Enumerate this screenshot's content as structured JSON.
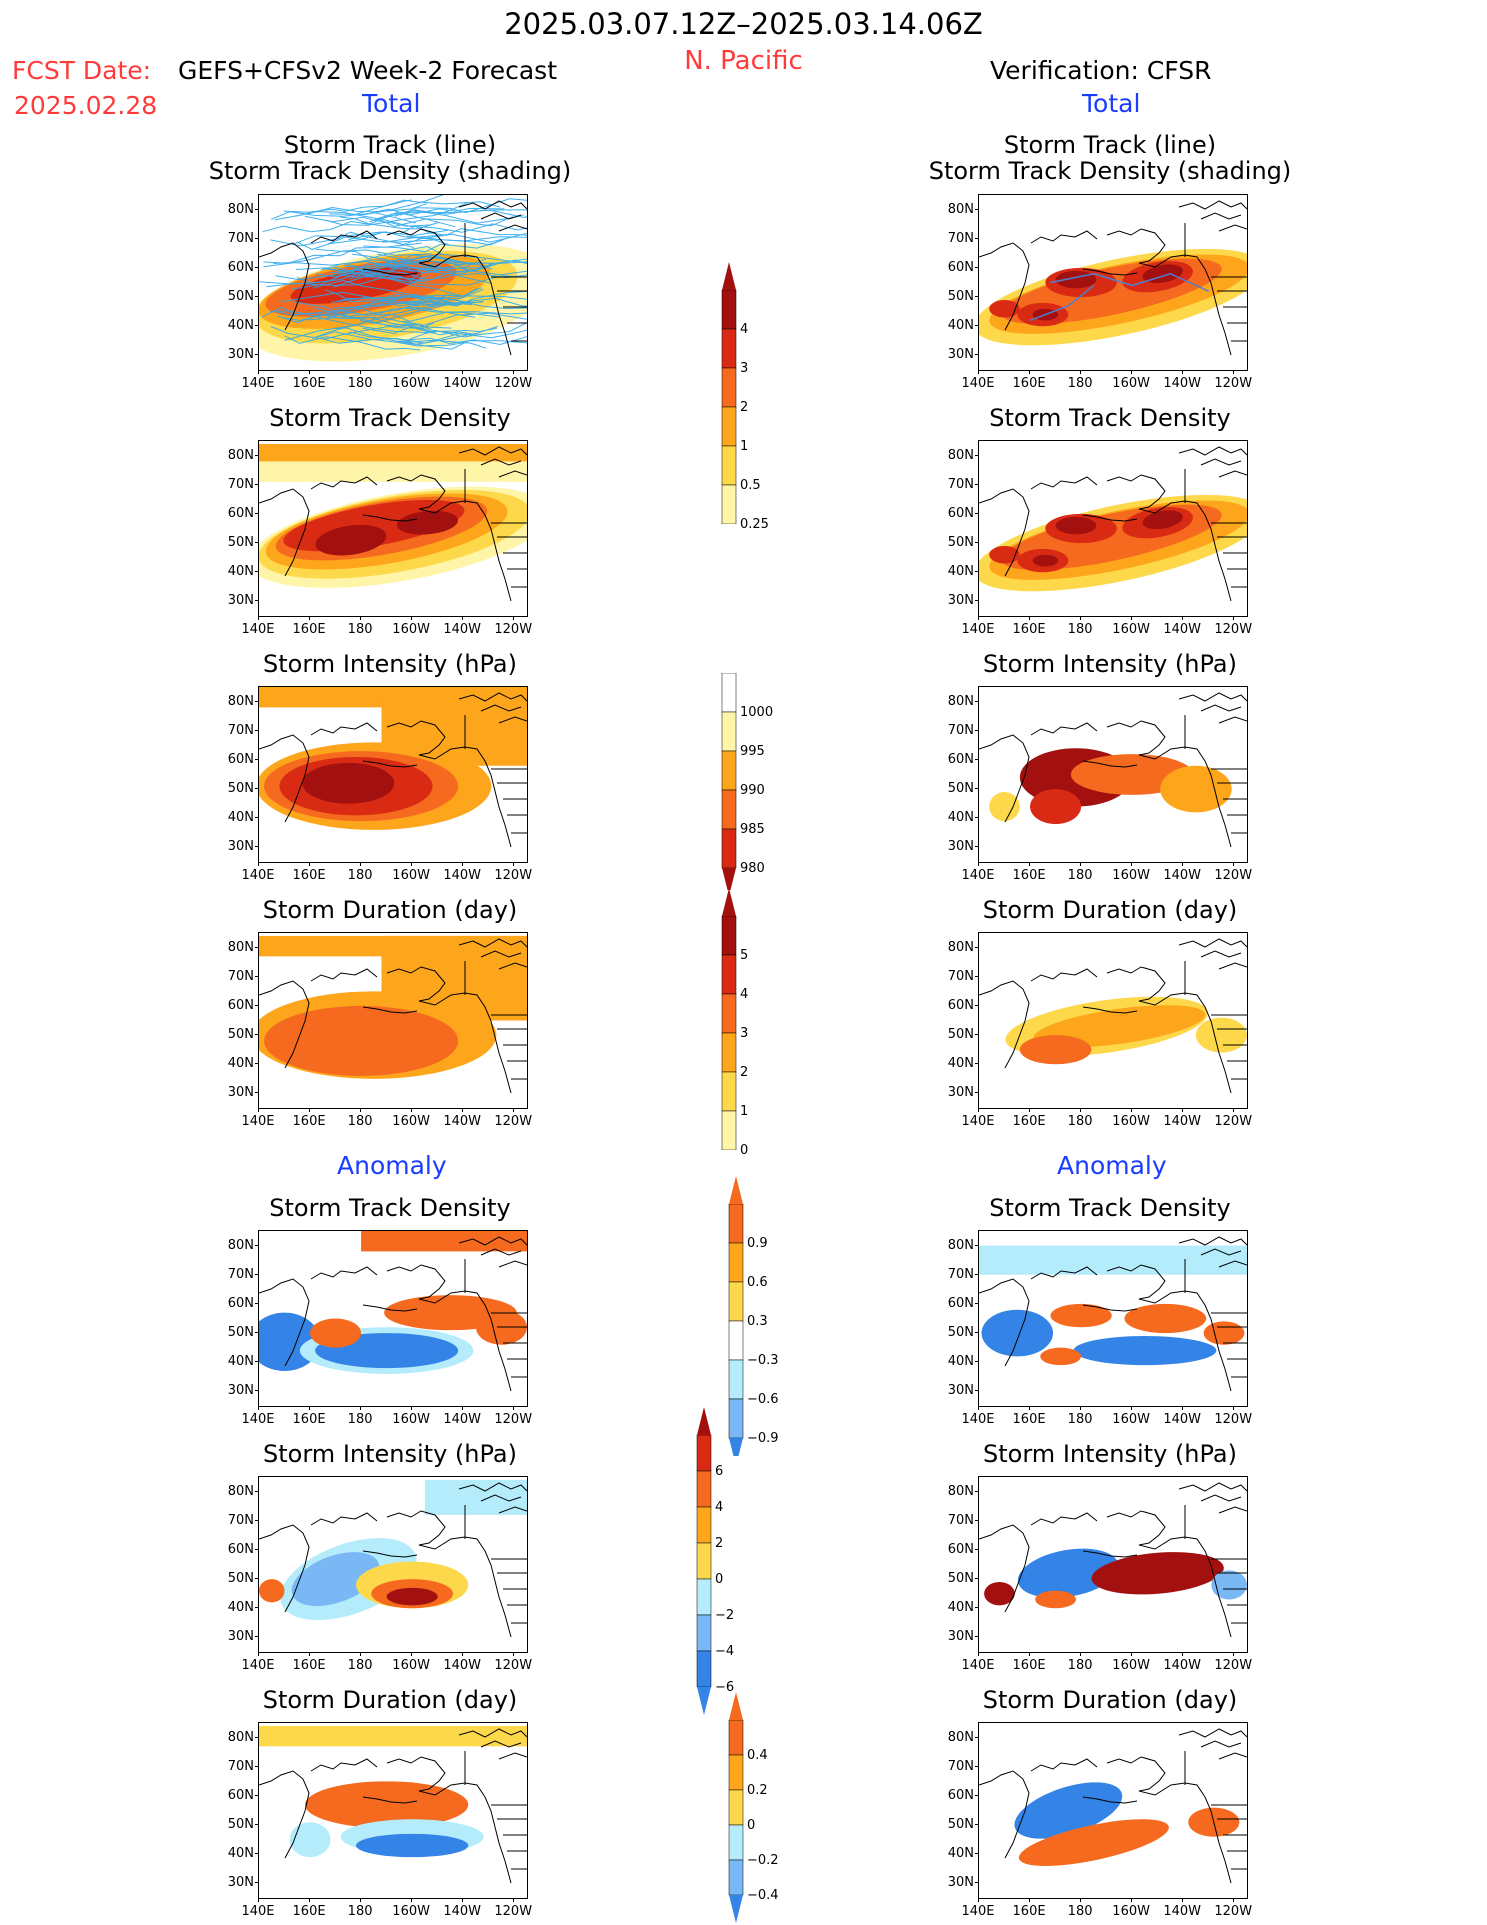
{
  "header": {
    "date_range": "2025.03.07.12Z–2025.03.14.06Z",
    "region": "N. Pacific",
    "fcst_label": "FCST Date:",
    "fcst_model": "GEFS+CFSv2 Week-2 Forecast",
    "fcst_date": "2025.02.28",
    "verification": "Verification: CFSR"
  },
  "sections": {
    "total": "Total",
    "anomaly": "Anomaly"
  },
  "panel_titles": {
    "track_line": "Storm Track (line)",
    "track_density_shading": "Storm Track Density (shading)",
    "track_density": "Storm Track Density",
    "intensity": "Storm Intensity (hPa)",
    "duration": "Storm Duration (day)"
  },
  "axes": {
    "lat_ticks": [
      "80N",
      "70N",
      "60N",
      "50N",
      "40N",
      "30N"
    ],
    "lon_ticks": [
      "140E",
      "160E",
      "180",
      "160W",
      "140W",
      "120W"
    ]
  },
  "colors": {
    "lightyellow": "#fff5a8",
    "yellow": "#fdd84a",
    "orange": "#fda51b",
    "darkorange": "#f56a1e",
    "red": "#d92b14",
    "darkred": "#a31010",
    "lightblue": "#b4ecfc",
    "midblue": "#7ab8f5",
    "blue": "#3483e6",
    "darkblue": "#1550c8",
    "track_line": "#2aa7ee",
    "track_obs": "#4d7fd6"
  },
  "colorbars": [
    {
      "id": "density_total",
      "labels": [
        "4",
        "3",
        "2",
        "1",
        "0.5",
        "0.25"
      ]
    },
    {
      "id": "intensity_total",
      "labels": [
        "1000",
        "995",
        "990",
        "985",
        "980"
      ]
    },
    {
      "id": "duration_total",
      "labels": [
        "5",
        "4",
        "3",
        "2",
        "1",
        "0"
      ]
    },
    {
      "id": "density_anom",
      "labels": [
        "0.9",
        "0.6",
        "0.3",
        "−0.3",
        "−0.6",
        "−0.9"
      ]
    },
    {
      "id": "intensity_anom",
      "labels": [
        "6",
        "4",
        "2",
        "0",
        "−2",
        "−4",
        "−6"
      ]
    },
    {
      "id": "duration_anom",
      "labels": [
        "0.4",
        "0.2",
        "0",
        "−0.2",
        "−0.4"
      ]
    }
  ],
  "chart_data": {
    "type": "heatmap",
    "domain": {
      "lon_range": [
        "140E",
        "115W"
      ],
      "lat_range": [
        "25N",
        "85N"
      ]
    },
    "panels": [
      {
        "column": "forecast",
        "field": "storm track density + storm track",
        "section": "total",
        "scale": "0.25–4",
        "max_region": "45N–60N, 165E–150W"
      },
      {
        "column": "verification",
        "field": "storm track density + storm track",
        "section": "total",
        "scale": "0.25–4",
        "max_region": "45N–62N, 160E–135W"
      },
      {
        "column": "forecast",
        "field": "storm track density",
        "section": "total",
        "scale": "0.25–4"
      },
      {
        "column": "verification",
        "field": "storm track density",
        "section": "total",
        "scale": "0.25–4"
      },
      {
        "column": "forecast",
        "field": "storm intensity (hPa)",
        "section": "total",
        "scale": "980–1000",
        "min_region": "45N–60N, 160E–170W"
      },
      {
        "column": "verification",
        "field": "storm intensity (hPa)",
        "section": "total",
        "scale": "980–1000",
        "min_region": "45N–60N, 160E–175W"
      },
      {
        "column": "forecast",
        "field": "storm duration (day)",
        "section": "total",
        "scale": "0–5"
      },
      {
        "column": "verification",
        "field": "storm duration (day)",
        "section": "total",
        "scale": "0–5"
      },
      {
        "column": "forecast",
        "field": "storm track density",
        "section": "anomaly",
        "scale": "-0.9–0.9",
        "negative_center": "40N–50N, 175W–140W"
      },
      {
        "column": "verification",
        "field": "storm track density",
        "section": "anomaly",
        "scale": "-0.9–0.9"
      },
      {
        "column": "forecast",
        "field": "storm intensity (hPa)",
        "section": "anomaly",
        "scale": "-6–6",
        "positive_center": "40N–50N, 165W–140W"
      },
      {
        "column": "verification",
        "field": "storm intensity (hPa)",
        "section": "anomaly",
        "scale": "-6–6"
      },
      {
        "column": "forecast",
        "field": "storm duration (day)",
        "section": "anomaly",
        "scale": "-0.4–0.4"
      },
      {
        "column": "verification",
        "field": "storm duration (day)",
        "section": "anomaly",
        "scale": "-0.4–0.4"
      }
    ]
  }
}
